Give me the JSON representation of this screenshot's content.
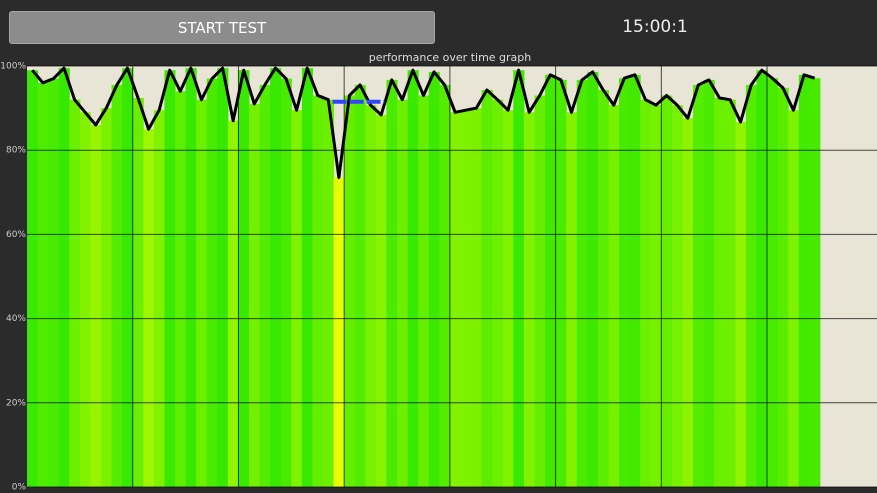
{
  "button": {
    "label": "START TEST"
  },
  "timer": "15:00:1",
  "chart_data": {
    "type": "line",
    "title": "performance over time graph",
    "x": [
      0,
      0.1,
      0.2,
      0.3,
      0.4,
      0.5,
      0.6,
      0.7,
      0.8,
      0.9,
      1.0,
      1.1,
      1.2,
      1.3,
      1.4,
      1.5,
      1.6,
      1.7,
      1.8,
      1.9,
      2.0,
      2.1,
      2.2,
      2.3,
      2.4,
      2.5,
      2.6,
      2.7,
      2.8,
      2.9,
      3.0,
      3.1,
      3.2,
      3.3,
      3.4,
      3.5,
      3.6,
      3.7,
      3.8,
      3.9,
      4.0,
      4.1,
      4.2,
      4.3,
      4.4,
      4.5,
      4.6,
      4.7,
      4.8,
      4.9,
      5.0,
      5.1,
      5.2,
      5.3,
      5.4,
      5.5,
      5.6,
      5.7,
      5.8,
      5.9,
      6.0,
      6.1,
      6.2,
      6.3,
      6.4,
      6.5,
      6.6,
      6.7,
      6.8,
      6.9,
      7.0,
      7.1,
      7.2,
      7.3,
      7.4
    ],
    "values": [
      99,
      96,
      97,
      99.5,
      92,
      89,
      86,
      90,
      95.5,
      99.5,
      92.4,
      85,
      89.5,
      99,
      94,
      99.5,
      92,
      97,
      99.5,
      87,
      99,
      91,
      95.5,
      99.5,
      97,
      89.5,
      99.5,
      93,
      92,
      73.5,
      93,
      95.5,
      90.7,
      88.4,
      96.7,
      92,
      99,
      93,
      98.6,
      95.5,
      89,
      89.5,
      90,
      94.3,
      92,
      89.5,
      99,
      89,
      93,
      97.9,
      96.7,
      89,
      96.7,
      98.6,
      94.3,
      90.7,
      97.1,
      97.9,
      92,
      90.7,
      93,
      90.7,
      87.6,
      95.5,
      96.7,
      92.4,
      92,
      86.7,
      95.5,
      99,
      97.1,
      94.8,
      89.5,
      97.9,
      97.1
    ],
    "xlim": [
      0,
      8.04
    ],
    "xgrid": [
      1,
      2,
      3,
      4,
      5,
      6,
      7
    ],
    "ylim": [
      0,
      100
    ],
    "yticks": [
      {
        "value": 0,
        "label": "0%"
      },
      {
        "value": 20,
        "label": "20%"
      },
      {
        "value": 40,
        "label": "40%"
      },
      {
        "value": 60,
        "label": "60%"
      },
      {
        "value": 80,
        "label": "80%"
      },
      {
        "value": 100,
        "label": "100%"
      }
    ],
    "grid": true,
    "color": "#000000",
    "color_low": "#e8ff00",
    "color_high": "#33e800",
    "marker": {
      "x": [
        2.89,
        3.38
      ],
      "value": 91.5,
      "color": "#3344ff"
    }
  }
}
